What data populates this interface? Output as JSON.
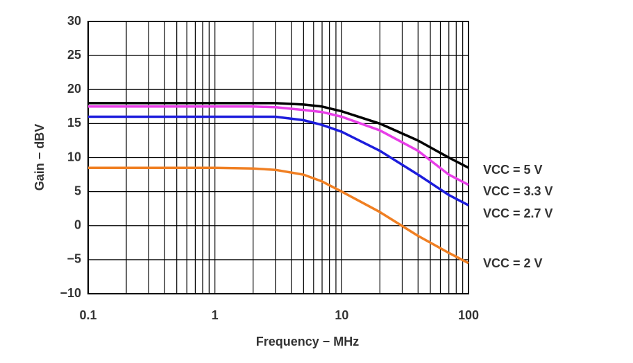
{
  "chart_data": {
    "type": "line",
    "x_label": "Frequency − MHz",
    "y_label": "Gain − dBV",
    "x": [
      0.1,
      1,
      2,
      3,
      5,
      7,
      10,
      20,
      40,
      70,
      100
    ],
    "series": [
      {
        "name": "VCC = 5 V",
        "color": "#000000",
        "values": [
          18,
          18,
          18,
          18,
          17.8,
          17.5,
          16.8,
          15,
          12.5,
          10,
          8.5
        ]
      },
      {
        "name": "VCC = 3.3 V",
        "color": "#e83ee8",
        "values": [
          17.5,
          17.5,
          17.5,
          17.4,
          17,
          16.7,
          16,
          14,
          11,
          7.5,
          6
        ]
      },
      {
        "name": "VCC = 2.7 V",
        "color": "#1c1cdc",
        "values": [
          16,
          16,
          16,
          16,
          15.5,
          14.8,
          13.8,
          11,
          7.5,
          4.5,
          3
        ]
      },
      {
        "name": "VCC = 2 V",
        "color": "#f07f22",
        "values": [
          8.5,
          8.5,
          8.4,
          8.2,
          7.5,
          6.5,
          5,
          2,
          -1.5,
          -4,
          -5.5
        ]
      }
    ],
    "xlim": [
      0.1,
      100
    ],
    "xticks": [
      0.1,
      1,
      10,
      100
    ],
    "xscale": "log",
    "ylim": [
      -10,
      30
    ],
    "yticks": [
      {
        "value": -10,
        "label": "−10"
      },
      {
        "value": -5,
        "label": "−5"
      },
      0,
      5,
      10,
      15,
      20,
      25,
      30
    ],
    "grid": true
  }
}
